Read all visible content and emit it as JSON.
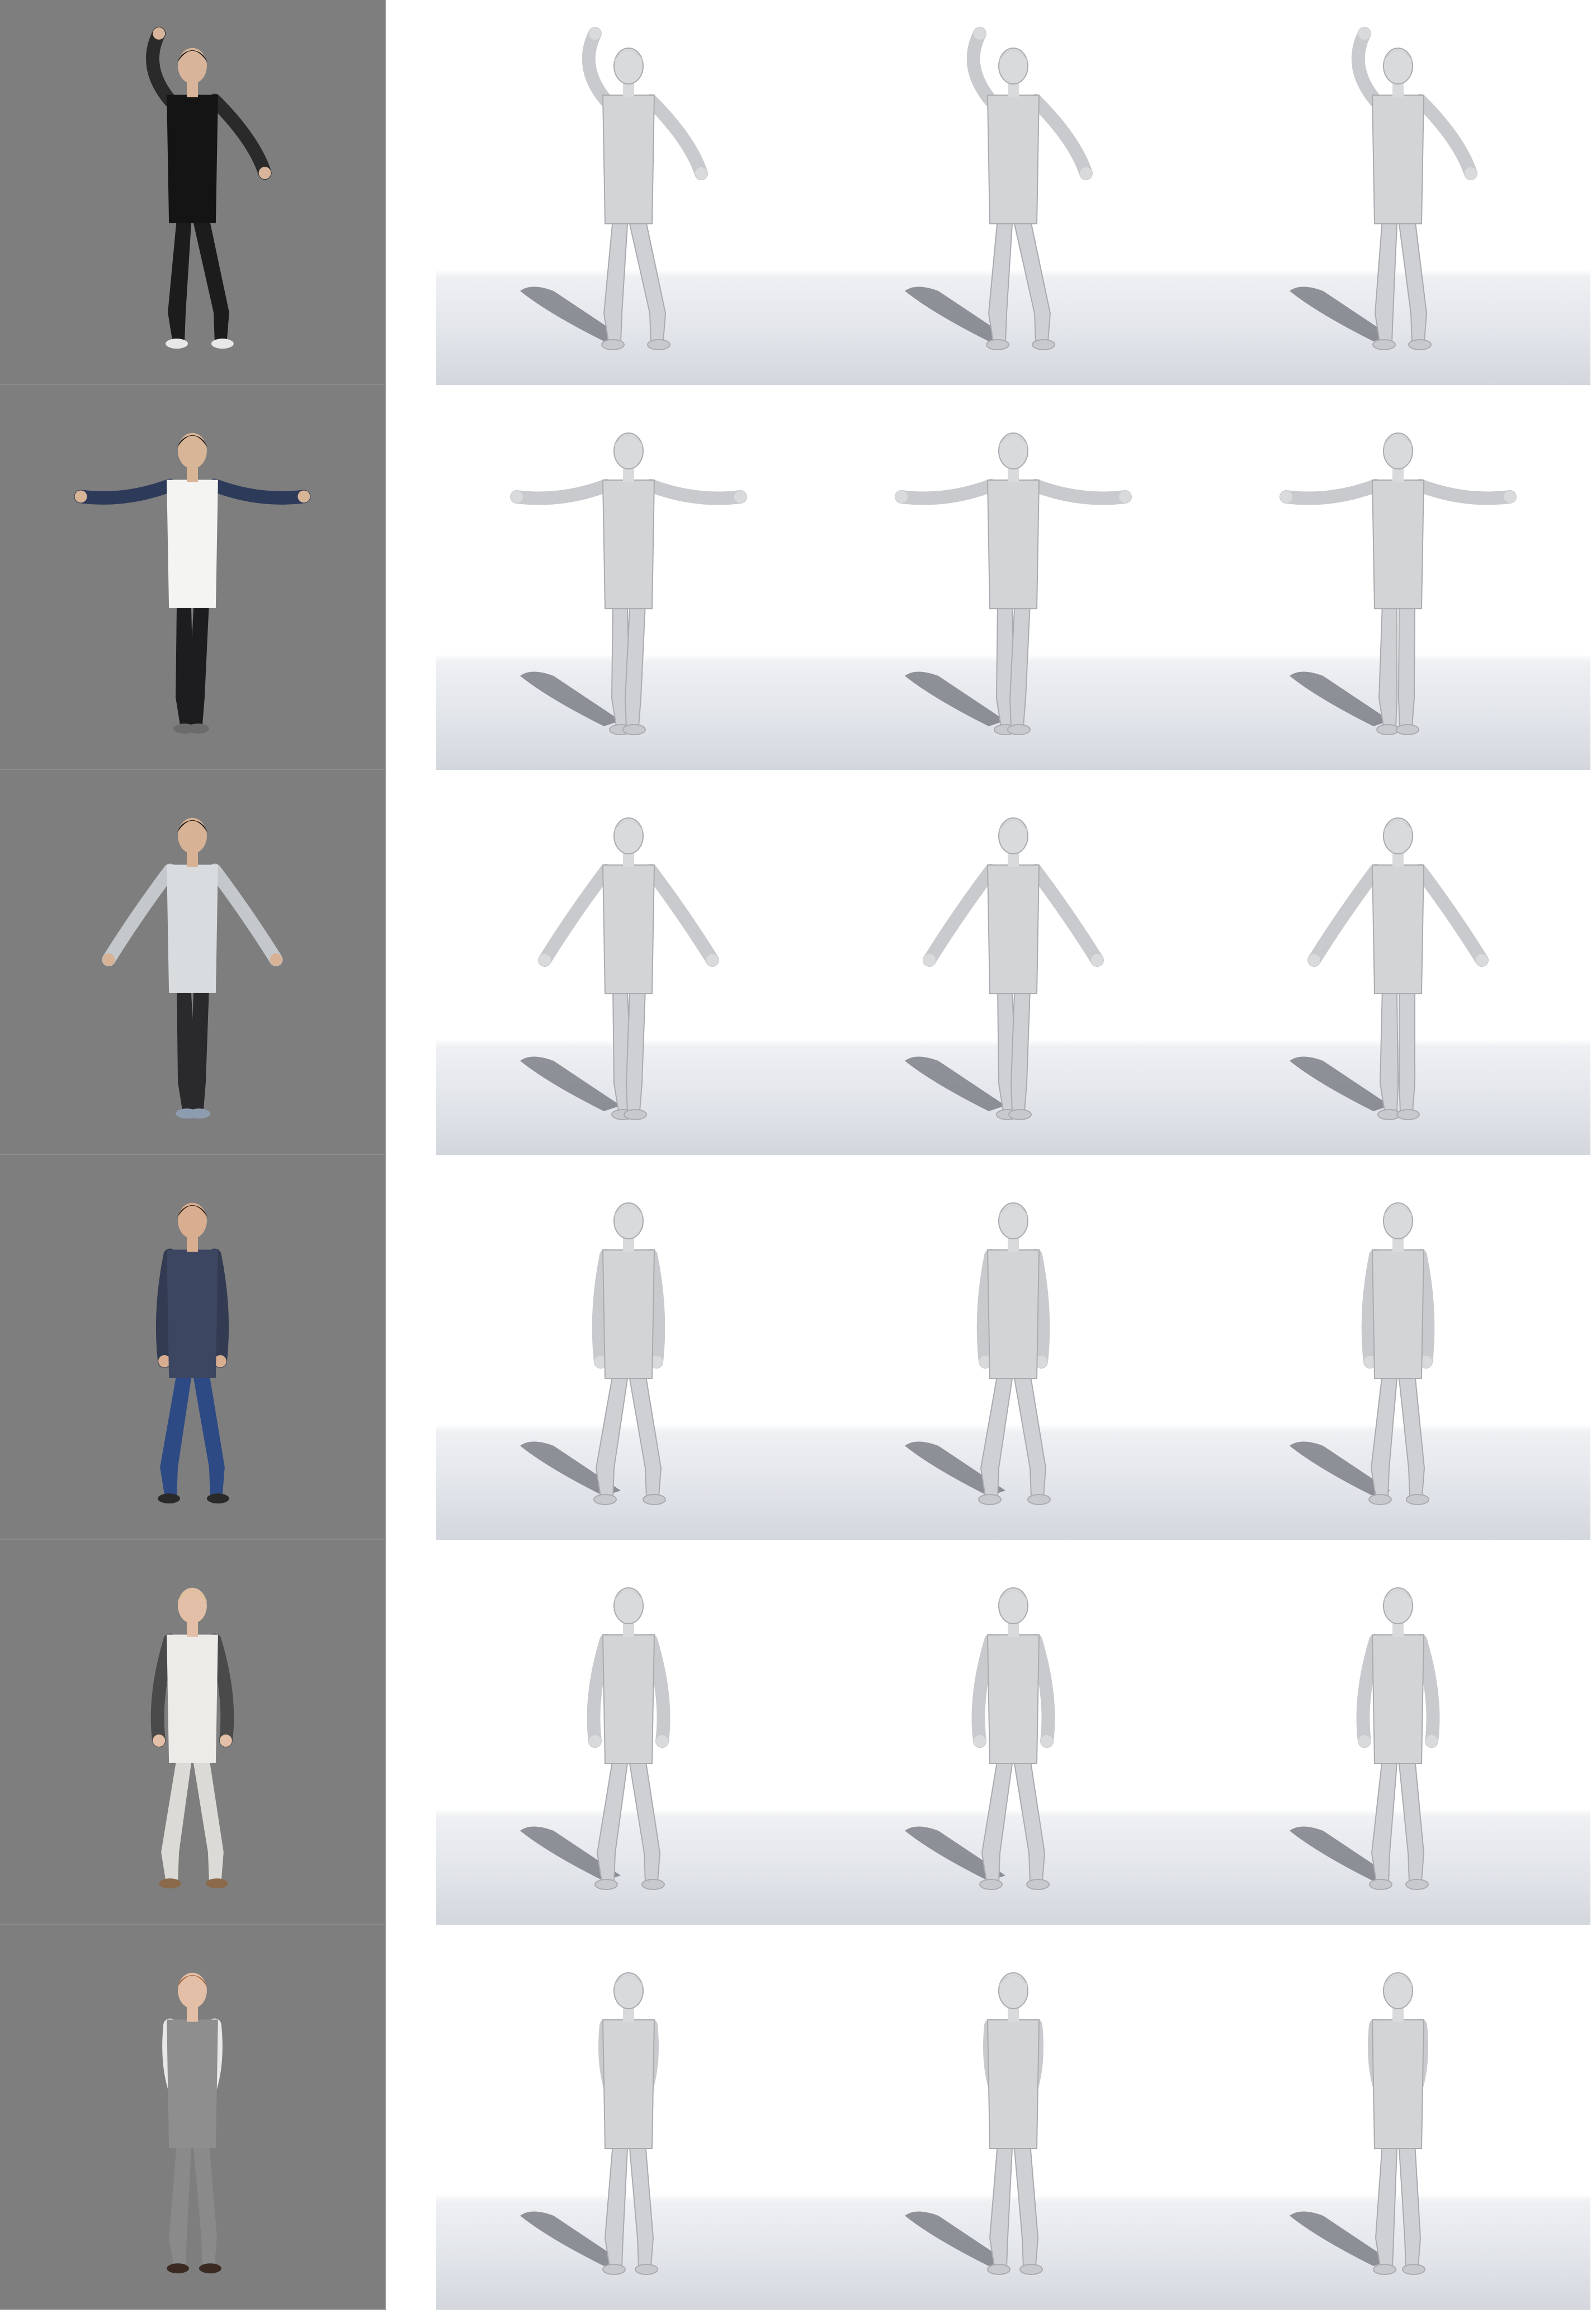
{
  "subjects": [
    {
      "id": "subject-1",
      "shirt": "#141414",
      "shirt_trim": "#2a2a2a",
      "pants": "#1c1c1c",
      "shoes": "#e8e8e8",
      "hair": "#111111",
      "skin": "#d8b59a"
    },
    {
      "id": "subject-2",
      "shirt": "#f4f4f2",
      "shirt_trim": "#2e3a5a",
      "pants": "#1d1d1f",
      "shoes": "#6b6b6b",
      "hair": "#121212",
      "skin": "#d9b597"
    },
    {
      "id": "subject-3",
      "shirt": "#d9dcdf",
      "shirt_trim": "#c4c8cc",
      "pants": "#2a2a2c",
      "shoes": "#8e9cb0",
      "hair": "#101010",
      "skin": "#d8b294"
    },
    {
      "id": "subject-4",
      "shirt": "#3c4660",
      "shirt_trim": "#333b52",
      "pants": "#2d4a85",
      "shoes": "#2a2a2a",
      "hair": "#2a1c14",
      "skin": "#d9ad90"
    },
    {
      "id": "subject-5",
      "shirt": "#ecebe8",
      "shirt_trim": "#4a4a4a",
      "pants": "#dcdad6",
      "shoes": "#8a6a4a",
      "hair": "#d9c08a",
      "skin": "#e2bfa6"
    },
    {
      "id": "subject-6",
      "shirt": "#8e8e8e",
      "shirt_trim": "#e8e8e8",
      "pants": "#8a8a8a",
      "shoes": "#3a2a22",
      "hair": "#a4603a",
      "skin": "#e2bfa6"
    }
  ],
  "colors": {
    "photo_background": "#7e7e7e",
    "render_mesh": "#d7d8da",
    "render_shadow": "#6f727a"
  }
}
